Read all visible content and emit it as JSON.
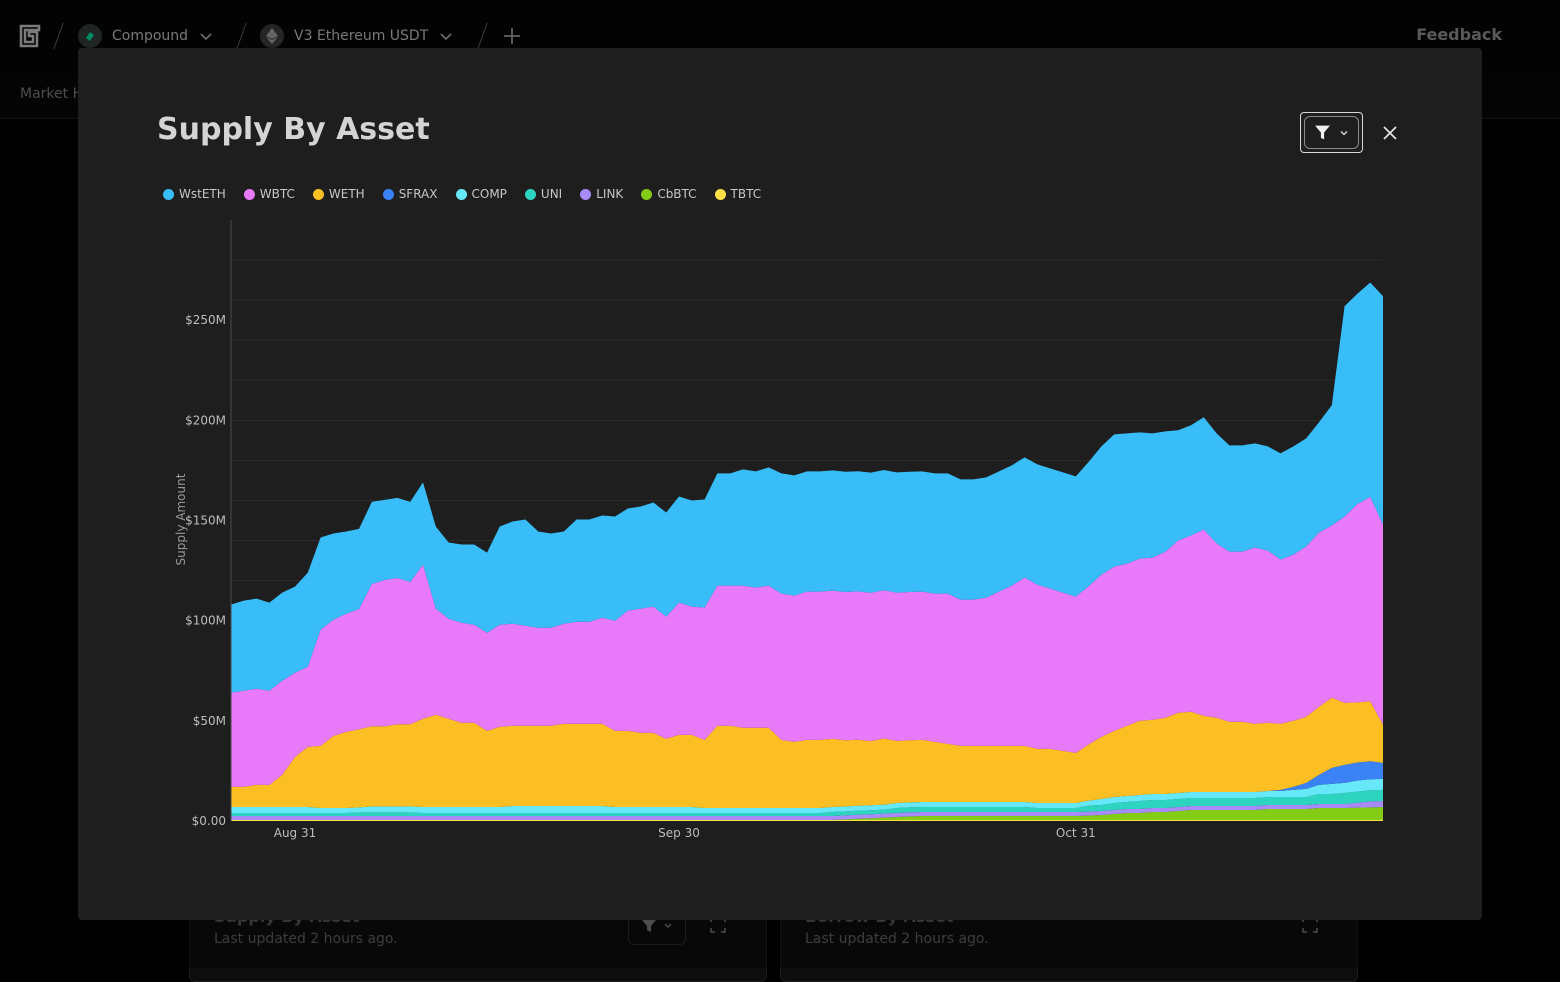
{
  "header": {
    "protocol": {
      "label": "Compound",
      "icon": "compound-coin-icon",
      "color": "#00d395"
    },
    "market": {
      "label": "V3 Ethereum USDT",
      "icon": "ethereum-coin-icon"
    },
    "feedback_label": "Feedback"
  },
  "subnav": {
    "tab_label": "Market H"
  },
  "background_cards": [
    {
      "title": "Supply By Asset",
      "updated": "Last updated 2 hours ago."
    },
    {
      "title": "Borrow By Asset",
      "updated": "Last updated 2 hours ago."
    }
  ],
  "modal": {
    "title": "Supply By Asset"
  },
  "colors": {
    "WstETH": "#38bdf8",
    "WBTC": "#e879f9",
    "WETH": "#fbbf24",
    "SFRAX": "#3b82f6",
    "COMP": "#67e8f9",
    "UNI": "#2dd4bf",
    "LINK": "#a78bfa",
    "CbBTC": "#84cc16",
    "TBTC": "#fde047"
  },
  "chart_data": {
    "type": "area",
    "stacked": true,
    "ylabel": "Supply Amount",
    "y_ticks": [
      "$0.00",
      "$50M",
      "$100M",
      "$150M",
      "$200M",
      "$250M"
    ],
    "ylim": [
      0,
      300
    ],
    "y_unit": "$M",
    "x_ticks": [
      {
        "label": "Aug 31",
        "day": 5
      },
      {
        "label": "Sep 30",
        "day": 35
      },
      {
        "label": "Oct 31",
        "day": 66
      }
    ],
    "x_range": [
      0,
      90
    ],
    "legend_position": "top-left",
    "series": [
      {
        "name": "TBTC",
        "values": [
          0.5,
          0.5,
          0.5,
          0.5,
          0.5,
          0.5,
          0.5,
          0.5,
          0.5,
          0.5,
          0.5,
          0.5,
          0.5,
          0.5,
          0.5,
          0.5,
          0.5,
          0.5,
          0.5,
          0.5,
          0.5,
          0.5,
          0.5,
          0.5,
          0.5,
          0.5,
          0.5,
          0.5,
          0.5,
          0.5,
          0.5,
          0.5,
          0.5,
          0.5,
          0.5,
          0.5,
          0.5,
          0.5,
          0.5,
          0.5,
          0.5,
          0.5,
          0.5,
          0.5,
          0.5,
          0.5,
          0.5,
          0.5,
          0.5,
          0.5,
          0.5,
          0.5,
          0.5,
          0.5,
          0.5,
          0.5,
          0.5,
          0.5,
          0.5,
          0.5,
          0.5,
          0.5,
          0.5,
          0.5,
          0.5,
          0.5,
          0.5,
          0.5,
          0.5,
          0.5,
          0.5,
          0.5,
          0.5,
          0.5,
          0.5,
          0.5,
          0.5,
          0.5,
          0.5,
          0.5,
          0.5,
          0.5,
          0.5,
          0.5,
          0.5,
          0.5,
          0.5,
          0.5,
          0.5,
          0.5,
          0.5
        ]
      },
      {
        "name": "CbBTC",
        "values": [
          0,
          0,
          0,
          0,
          0,
          0,
          0,
          0,
          0,
          0,
          0,
          0,
          0,
          0,
          0,
          0,
          0,
          0,
          0,
          0,
          0,
          0,
          0,
          0,
          0,
          0,
          0,
          0,
          0,
          0,
          0,
          0,
          0,
          0,
          0,
          0,
          0,
          0,
          0,
          0,
          0,
          0,
          0,
          0,
          0,
          0,
          0,
          0,
          0.3,
          0.6,
          0.9,
          1.2,
          1.5,
          1.8,
          2,
          2,
          2,
          2,
          2,
          2,
          2,
          2,
          2,
          2,
          2,
          2,
          2,
          2.2,
          2.5,
          3,
          3.5,
          3.5,
          4,
          4,
          4.5,
          5,
          5,
          5,
          5,
          5,
          5,
          5.5,
          5.5,
          5.5,
          5.5,
          6,
          6,
          6,
          6.2,
          6.3,
          6.5
        ]
      },
      {
        "name": "LINK",
        "values": [
          2,
          2,
          2,
          2,
          2,
          2,
          2,
          2,
          2,
          2,
          2,
          2,
          2,
          2,
          2,
          2,
          2,
          2,
          2,
          2,
          2,
          2,
          2,
          2,
          2,
          2,
          2,
          2,
          2,
          2,
          2,
          2,
          2,
          2,
          2,
          2,
          2,
          2,
          2,
          2,
          2,
          2,
          2,
          2,
          2,
          2,
          2,
          2,
          2,
          2,
          2,
          2,
          2,
          2,
          2,
          2,
          2,
          2,
          2,
          2,
          2,
          2,
          2,
          2,
          2,
          2,
          2,
          2,
          2,
          2,
          2,
          2,
          2,
          2,
          2,
          2,
          2,
          2,
          2,
          2,
          2,
          2,
          2,
          2,
          2,
          2,
          2,
          2,
          2.5,
          3,
          3
        ]
      },
      {
        "name": "UNI",
        "values": [
          1.5,
          1.5,
          1.5,
          1.5,
          1.5,
          1.5,
          1.5,
          1.5,
          1.5,
          1.5,
          1.8,
          1.8,
          1.8,
          1.8,
          1.8,
          1.5,
          1.5,
          1.5,
          1.5,
          1.5,
          1.5,
          1.5,
          1.5,
          1.5,
          1.5,
          1.5,
          1.5,
          1.5,
          1.5,
          1.5,
          1.5,
          1.5,
          1.5,
          1.5,
          1.5,
          1.5,
          1.5,
          1.5,
          1.5,
          1.5,
          1.5,
          1.5,
          1.5,
          1.5,
          1.5,
          1.5,
          1.5,
          2,
          2,
          2,
          2,
          2,
          2.5,
          2.5,
          2.5,
          2.5,
          2.5,
          2.5,
          2.5,
          2.5,
          2.5,
          2.5,
          2.5,
          2,
          2,
          2,
          2,
          3,
          3,
          3.5,
          3.5,
          4,
          4,
          4,
          4,
          4,
          4,
          4,
          4,
          4,
          4,
          4,
          4,
          4,
          4,
          5,
          5,
          5.5,
          5.5,
          5.5,
          5.5
        ]
      },
      {
        "name": "COMP",
        "values": [
          3,
          3,
          3,
          3,
          3,
          3,
          3,
          2.5,
          2.5,
          2.5,
          2.5,
          3,
          3,
          3,
          3,
          3,
          3,
          3,
          3,
          3,
          3,
          3,
          3.5,
          3.5,
          3.5,
          3.5,
          3.5,
          3.5,
          3.5,
          3.5,
          3,
          3,
          3,
          3,
          3,
          3,
          3,
          2.5,
          2.5,
          2.5,
          2.5,
          2.5,
          2.5,
          2.5,
          2.5,
          2.5,
          2.5,
          2.5,
          2.5,
          2.5,
          2.5,
          2.5,
          2.5,
          2.5,
          2.5,
          2.5,
          2.5,
          2.5,
          2.5,
          2.5,
          2.5,
          2.5,
          2.5,
          2.5,
          2.5,
          2.5,
          2.5,
          2.5,
          3,
          3,
          3,
          3,
          3,
          3,
          3,
          3,
          3,
          3,
          3,
          3,
          3,
          3,
          3,
          3.5,
          4,
          4.5,
          5,
          5,
          5.5,
          5.5,
          5.5
        ]
      },
      {
        "name": "SFRAX",
        "values": [
          0,
          0,
          0,
          0,
          0,
          0,
          0,
          0,
          0,
          0,
          0,
          0,
          0,
          0,
          0,
          0,
          0,
          0,
          0,
          0,
          0,
          0,
          0,
          0,
          0,
          0,
          0,
          0,
          0,
          0,
          0,
          0,
          0,
          0,
          0,
          0,
          0,
          0,
          0,
          0,
          0,
          0,
          0,
          0,
          0,
          0,
          0,
          0,
          0,
          0,
          0,
          0,
          0,
          0,
          0,
          0,
          0,
          0,
          0,
          0,
          0,
          0,
          0,
          0,
          0,
          0,
          0,
          0,
          0,
          0,
          0,
          0,
          0,
          0,
          0,
          0,
          0,
          0,
          0,
          0,
          0,
          0,
          0.5,
          1.5,
          3,
          5,
          8,
          9,
          9,
          9,
          8
        ]
      },
      {
        "name": "WETH",
        "values": [
          10,
          10,
          11,
          11,
          16,
          25,
          30,
          31,
          36,
          38,
          39,
          40,
          40,
          41,
          41,
          44,
          46,
          44,
          42,
          42,
          38,
          40,
          40,
          40,
          40,
          40,
          41,
          41,
          41,
          41,
          38,
          38,
          37,
          37,
          34,
          36,
          36,
          34,
          41,
          41,
          40,
          40,
          40,
          34,
          33,
          34,
          34,
          34,
          33,
          33,
          32,
          33,
          31,
          31,
          31,
          30,
          29,
          28,
          28,
          28,
          28,
          28,
          28,
          27,
          27,
          26,
          25,
          28,
          31,
          33,
          35,
          37,
          37,
          38,
          40,
          40,
          38,
          37,
          35,
          35,
          34,
          34,
          33,
          33,
          33,
          34,
          35,
          31,
          30,
          30,
          19
        ]
      },
      {
        "name": "WBTC",
        "values": [
          47,
          48,
          48,
          47,
          47,
          42,
          40,
          58,
          58,
          59,
          60,
          71,
          73,
          73,
          71,
          77,
          53,
          50,
          50,
          49,
          49,
          51,
          51,
          50,
          49,
          49,
          50,
          51,
          51,
          53,
          55,
          60,
          62,
          63,
          61,
          66,
          64,
          66,
          70,
          70,
          71,
          70,
          71,
          73,
          73,
          74,
          74,
          74,
          74,
          74,
          74,
          74,
          74,
          74,
          74,
          74,
          75,
          73,
          73,
          74,
          77,
          80,
          84,
          82,
          80,
          79,
          78,
          79,
          81,
          82,
          81,
          81,
          81,
          83,
          86,
          88,
          93,
          87,
          85,
          85,
          88,
          86,
          82,
          83,
          85,
          87,
          86,
          93,
          99,
          102,
          100
        ]
      },
      {
        "name": "WstETH",
        "values": [
          44,
          45,
          45,
          44,
          44,
          43,
          47,
          46,
          43,
          41,
          40,
          41,
          40,
          40,
          40,
          41,
          41,
          38,
          39,
          40,
          40,
          49,
          51,
          53,
          48,
          47,
          46,
          51,
          51,
          51,
          52,
          51,
          51,
          52,
          52,
          53,
          53,
          54,
          56,
          56,
          58,
          58,
          59,
          60,
          60,
          60,
          60,
          60,
          60,
          60,
          60,
          60,
          60,
          60,
          60,
          60,
          60,
          60,
          60,
          60,
          60,
          60,
          60,
          60,
          60,
          60,
          60,
          62,
          64,
          66,
          65,
          63,
          62,
          60,
          55,
          55,
          56,
          55,
          53,
          53,
          52,
          52,
          53,
          54,
          54,
          55,
          60,
          105,
          105,
          107,
          114
        ]
      }
    ]
  }
}
